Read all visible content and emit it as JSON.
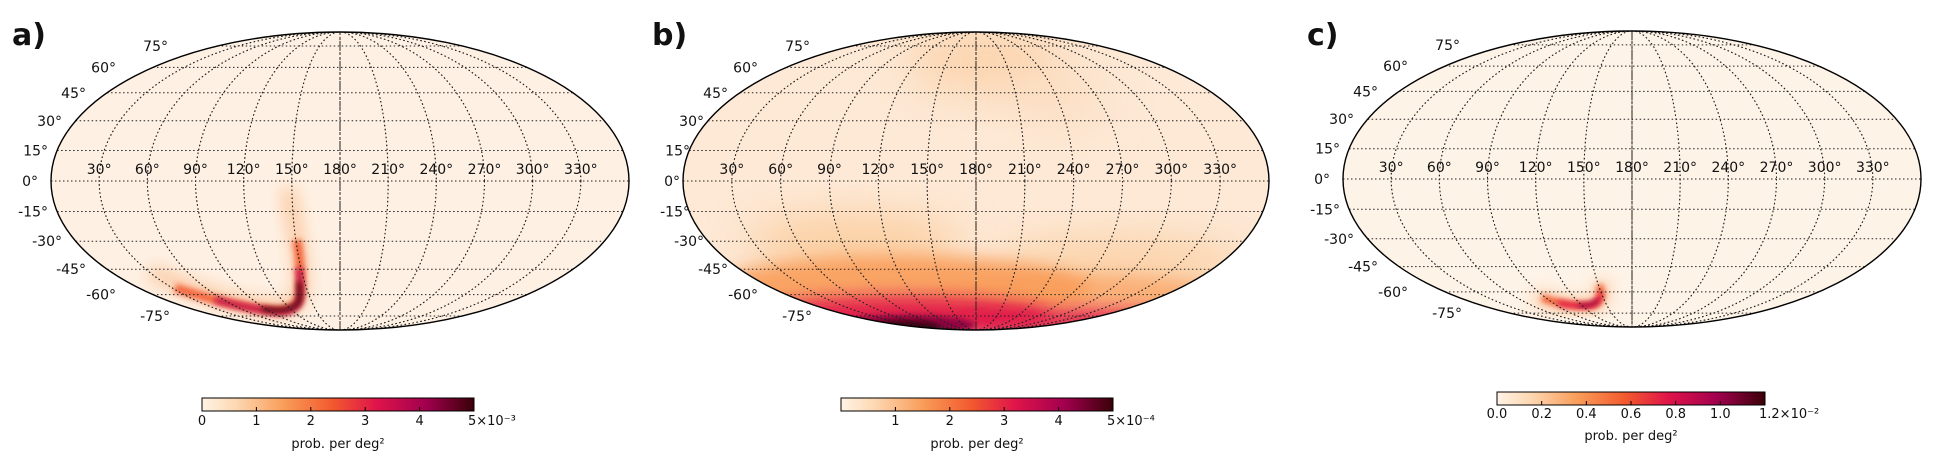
{
  "panels": [
    {
      "label": "a)",
      "lat_labels": [
        "75°",
        "60°",
        "45°",
        "30°",
        "15°",
        "0°",
        "-15°",
        "-30°",
        "-45°",
        "-60°",
        "-75°"
      ],
      "lon_labels": [
        "30°",
        "60°",
        "90°",
        "120°",
        "150°",
        "180°",
        "210°",
        "240°",
        "270°",
        "300°",
        "330°"
      ],
      "colorbar": {
        "ticks": [
          "0",
          "1",
          "2",
          "3",
          "4",
          "5×10⁻³"
        ],
        "label": "prob. per deg²",
        "max": 0.005
      }
    },
    {
      "label": "b)",
      "lat_labels": [
        "75°",
        "60°",
        "45°",
        "30°",
        "15°",
        "0°",
        "-15°",
        "-30°",
        "-45°",
        "-60°",
        "-75°"
      ],
      "lon_labels": [
        "30°",
        "60°",
        "90°",
        "120°",
        "150°",
        "180°",
        "210°",
        "240°",
        "270°",
        "300°",
        "330°"
      ],
      "colorbar": {
        "ticks": [
          "1",
          "2",
          "3",
          "4",
          "5×10⁻⁴"
        ],
        "label": "prob. per deg²",
        "max": 0.0005
      }
    },
    {
      "label": "c)",
      "lat_labels": [
        "75°",
        "60°",
        "45°",
        "30°",
        "15°",
        "0°",
        "-15°",
        "-30°",
        "-45°",
        "-60°",
        "-75°"
      ],
      "lon_labels": [
        "30°",
        "60°",
        "90°",
        "120°",
        "150°",
        "180°",
        "210°",
        "240°",
        "270°",
        "300°",
        "330°"
      ],
      "colorbar": {
        "ticks": [
          "0.0",
          "0.2",
          "0.4",
          "0.6",
          "0.8",
          "1.0",
          "1.2×10⁻²"
        ],
        "label": "prob. per deg²",
        "max": 0.012
      }
    }
  ],
  "colormap": [
    "#fff3e6",
    "#fdd9b4",
    "#f99d5a",
    "#f2592e",
    "#e0144a",
    "#a3004f",
    "#3a0008"
  ]
}
